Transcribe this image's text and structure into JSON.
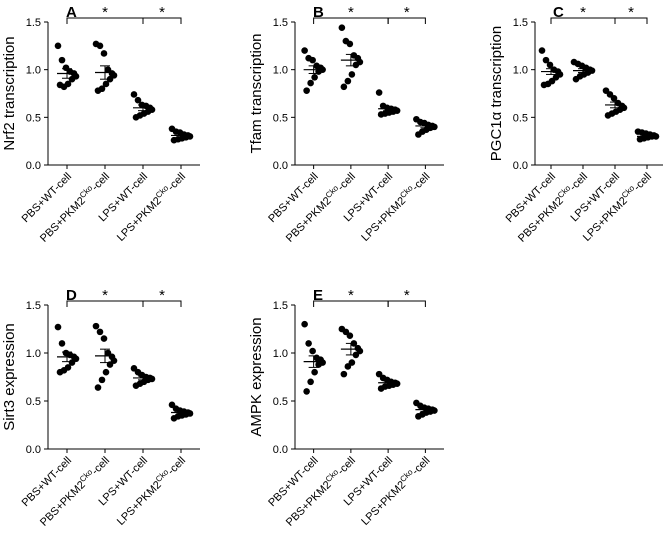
{
  "figure": {
    "categories": [
      {
        "main": "PBS+WT-cell",
        "sup": "",
        "tail": ""
      },
      {
        "main": "PBS+PKM2",
        "sup": "Cko",
        "tail": "-cell"
      },
      {
        "main": "LPS+WT-cell",
        "sup": "",
        "tail": ""
      },
      {
        "main": "LPS+PKM2",
        "sup": "Cko",
        "tail": "-cell"
      }
    ],
    "significance_mark": "*"
  },
  "chart_data": [
    {
      "type": "scatter",
      "panel": "A",
      "ylabel": "Nrf2 transcription",
      "ylim": [
        0,
        1.5
      ],
      "yticks": [
        "0.0",
        "0.5",
        "1.0",
        "1.5"
      ],
      "means": [
        0.96,
        0.97,
        0.6,
        0.31
      ],
      "sem": [
        0.05,
        0.07,
        0.03,
        0.02
      ],
      "series": [
        [
          1.25,
          1.1,
          1.02,
          0.98,
          0.96,
          0.93,
          0.9,
          0.85,
          0.82,
          0.84
        ],
        [
          1.27,
          1.25,
          1.17,
          1.0,
          0.96,
          0.94,
          0.9,
          0.85,
          0.8,
          0.78
        ],
        [
          0.74,
          0.68,
          0.63,
          0.62,
          0.6,
          0.58,
          0.56,
          0.54,
          0.52,
          0.5
        ],
        [
          0.38,
          0.35,
          0.34,
          0.32,
          0.31,
          0.3,
          0.29,
          0.28,
          0.27,
          0.26
        ]
      ],
      "significance": [
        "*",
        "*"
      ]
    },
    {
      "type": "scatter",
      "panel": "B",
      "ylabel": "Tfam transcription",
      "ylim": [
        0,
        1.5
      ],
      "yticks": [
        "0.0",
        "0.5",
        "1.0",
        "1.5"
      ],
      "means": [
        1.0,
        1.1,
        0.59,
        0.41
      ],
      "sem": [
        0.04,
        0.06,
        0.02,
        0.02
      ],
      "series": [
        [
          1.2,
          1.12,
          1.1,
          1.04,
          1.02,
          1.0,
          0.98,
          0.92,
          0.86,
          0.78
        ],
        [
          1.44,
          1.3,
          1.27,
          1.15,
          1.12,
          1.08,
          1.05,
          0.95,
          0.88,
          0.82
        ],
        [
          0.76,
          0.62,
          0.6,
          0.59,
          0.58,
          0.57,
          0.56,
          0.55,
          0.54,
          0.53
        ],
        [
          0.48,
          0.45,
          0.44,
          0.42,
          0.41,
          0.4,
          0.39,
          0.37,
          0.35,
          0.32
        ]
      ],
      "significance": [
        "*",
        "*"
      ]
    },
    {
      "type": "scatter",
      "panel": "C",
      "ylabel": "PGC1α transcription",
      "ylim": [
        0,
        1.5
      ],
      "yticks": [
        "0.0",
        "0.5",
        "1.0",
        "1.5"
      ],
      "means": [
        0.98,
        0.99,
        0.63,
        0.3
      ],
      "sem": [
        0.03,
        0.02,
        0.03,
        0.01
      ],
      "series": [
        [
          1.2,
          1.1,
          1.05,
          1.0,
          0.98,
          0.95,
          0.92,
          0.88,
          0.85,
          0.84
        ],
        [
          1.08,
          1.06,
          1.04,
          1.02,
          1.0,
          0.99,
          0.97,
          0.95,
          0.93,
          0.9
        ],
        [
          0.78,
          0.74,
          0.7,
          0.65,
          0.62,
          0.6,
          0.58,
          0.56,
          0.54,
          0.52
        ],
        [
          0.35,
          0.34,
          0.33,
          0.32,
          0.31,
          0.3,
          0.3,
          0.29,
          0.28,
          0.27
        ]
      ],
      "significance": [
        "*",
        "*"
      ]
    },
    {
      "type": "scatter",
      "panel": "D",
      "ylabel": "Sirt3 expression",
      "ylim": [
        0,
        1.5
      ],
      "yticks": [
        "0.0",
        "0.5",
        "1.0",
        "1.5"
      ],
      "means": [
        0.96,
        0.97,
        0.74,
        0.38
      ],
      "sem": [
        0.05,
        0.07,
        0.02,
        0.02
      ],
      "series": [
        [
          1.27,
          1.1,
          1.0,
          0.98,
          0.96,
          0.94,
          0.9,
          0.85,
          0.82,
          0.8
        ],
        [
          1.28,
          1.22,
          1.15,
          1.0,
          0.96,
          0.92,
          0.88,
          0.8,
          0.72,
          0.64
        ],
        [
          0.84,
          0.8,
          0.77,
          0.75,
          0.74,
          0.73,
          0.72,
          0.7,
          0.68,
          0.66
        ],
        [
          0.46,
          0.42,
          0.4,
          0.39,
          0.38,
          0.37,
          0.36,
          0.35,
          0.34,
          0.32
        ]
      ],
      "significance": [
        "*",
        "*"
      ]
    },
    {
      "type": "scatter",
      "panel": "E",
      "ylabel": "AMPK expression",
      "ylim": [
        0,
        1.5
      ],
      "yticks": [
        "0.0",
        "0.5",
        "1.0",
        "1.5"
      ],
      "means": [
        0.91,
        1.04,
        0.69,
        0.41
      ],
      "sem": [
        0.06,
        0.06,
        0.02,
        0.02
      ],
      "series": [
        [
          1.3,
          1.1,
          1.02,
          0.95,
          0.93,
          0.9,
          0.88,
          0.8,
          0.7,
          0.6
        ],
        [
          1.25,
          1.22,
          1.18,
          1.1,
          1.05,
          1.02,
          0.98,
          0.9,
          0.86,
          0.78
        ],
        [
          0.78,
          0.74,
          0.72,
          0.7,
          0.69,
          0.68,
          0.67,
          0.66,
          0.65,
          0.63
        ],
        [
          0.48,
          0.45,
          0.43,
          0.42,
          0.41,
          0.4,
          0.39,
          0.38,
          0.36,
          0.34
        ]
      ],
      "significance": [
        "*",
        "*"
      ]
    }
  ]
}
